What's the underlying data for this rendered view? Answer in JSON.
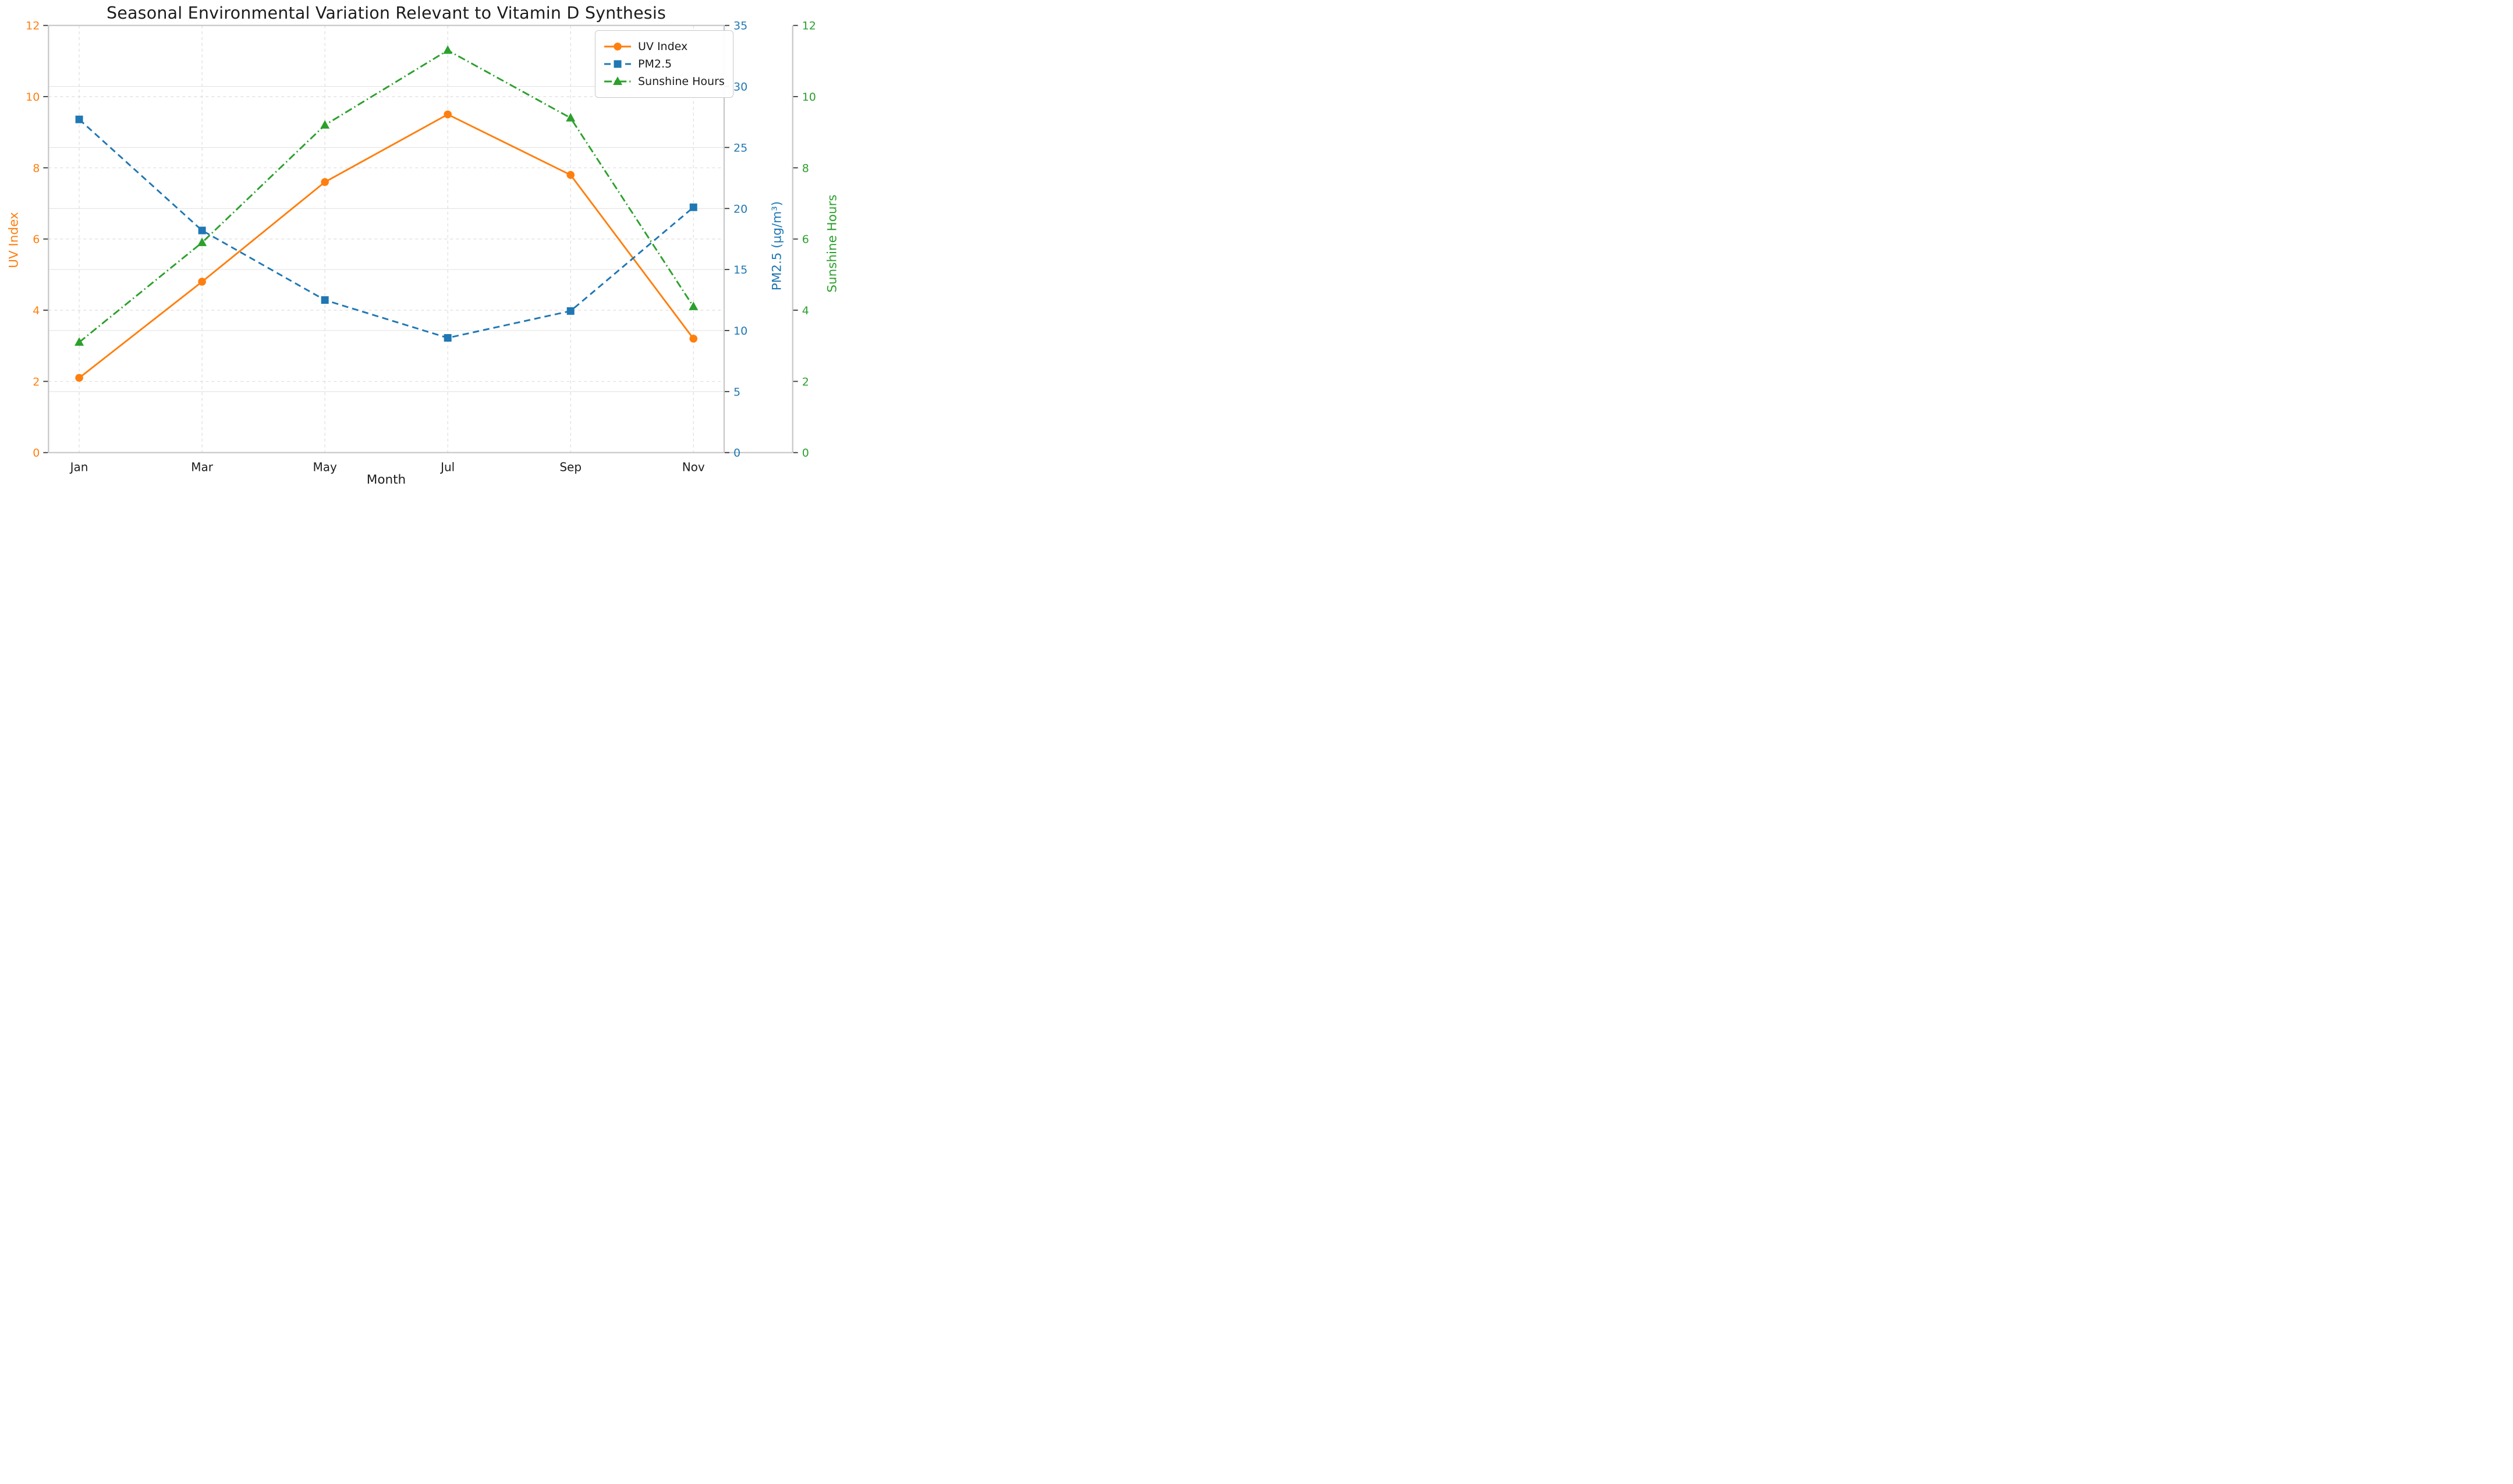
{
  "title": "Seasonal Environmental Variation Relevant to Vitamin D Synthesis",
  "chart_data": {
    "type": "line",
    "categories": [
      "Jan",
      "Mar",
      "May",
      "Jul",
      "Sep",
      "Nov"
    ],
    "xlabel": "Month",
    "grid": true,
    "legend": {
      "position": "upper-right"
    },
    "series": [
      {
        "name": "UV Index",
        "axis": "uv",
        "color": "#ff7f0e",
        "line": "solid",
        "marker": "circle",
        "values": [
          2.1,
          4.8,
          7.6,
          9.5,
          7.8,
          3.2
        ]
      },
      {
        "name": "PM2.5",
        "axis": "pm",
        "color": "#1f77b4",
        "line": "dashed",
        "marker": "square",
        "values": [
          27.3,
          18.2,
          12.5,
          9.4,
          11.6,
          20.1
        ]
      },
      {
        "name": "Sunshine Hours",
        "axis": "sun",
        "color": "#2ca02c",
        "line": "dashdot",
        "marker": "triangle",
        "values": [
          3.1,
          5.9,
          9.2,
          11.3,
          9.4,
          4.1
        ]
      }
    ],
    "axes": {
      "uv": {
        "label": "UV Index",
        "color": "#ff7f0e",
        "min": 0,
        "max": 12,
        "ticks": [
          0,
          2,
          4,
          6,
          8,
          10,
          12
        ],
        "side": "left"
      },
      "pm": {
        "label": "PM2.5 (µg/m³)",
        "color": "#1f77b4",
        "min": 0,
        "max": 35,
        "ticks": [
          0,
          5,
          10,
          15,
          20,
          25,
          30,
          35
        ],
        "side": "right"
      },
      "sun": {
        "label": "Sunshine Hours",
        "color": "#2ca02c",
        "min": 0,
        "max": 12,
        "ticks": [
          0,
          2,
          4,
          6,
          8,
          10,
          12
        ],
        "side": "right-outer"
      }
    }
  },
  "colors": {
    "background": "#ffffff",
    "grid_solid": "#e3e3e3",
    "grid_dashed": "#d9d9d9",
    "spine": "#c6c6c6",
    "tick_mark": "#3a3a3a",
    "x_tick_label": "#1c1c1c",
    "title": "#1c1c1c"
  }
}
